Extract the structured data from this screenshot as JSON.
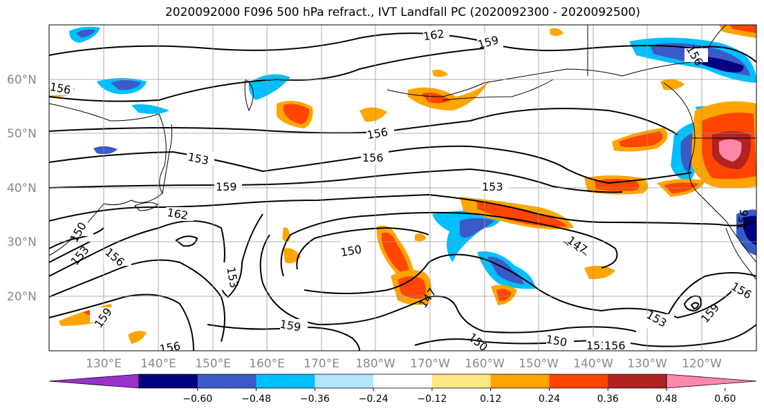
{
  "title": "2020092000 F096 500 hPa refract., IVT Landfall PC (2020092300 - 2020092500)",
  "lat_labels": [
    "60°N",
    "50°N",
    "40°N",
    "30°N",
    "20°N"
  ],
  "lon_labels": [
    "130°E",
    "140°E",
    "150°E",
    "160°E",
    "170°E",
    "180°W",
    "170°W",
    "160°W",
    "150°W",
    "140°W",
    "130°W",
    "120°W"
  ],
  "contour_labels": [
    "162",
    "159",
    "156",
    "156",
    "156",
    "153",
    "156",
    "153",
    "159",
    "162",
    "150",
    "153",
    "150",
    "156",
    "147",
    "147",
    "159",
    "159",
    "156",
    "153",
    "150",
    "153",
    "156",
    "156",
    "159",
    "150",
    "156",
    "153"
  ],
  "colorbar": {
    "ticks": [
      "−0.60",
      "−0.48",
      "−0.36",
      "−0.24",
      "−0.12",
      "0.12",
      "0.24",
      "0.36",
      "0.48",
      "0.60"
    ],
    "colors": [
      "#9932cc",
      "#000080",
      "#3a5bc7",
      "#00bfff",
      "#b3e5fc",
      "#ffffff",
      "#ffe680",
      "#ffa500",
      "#ff4500",
      "#b22222",
      "#ff88aa"
    ]
  }
}
